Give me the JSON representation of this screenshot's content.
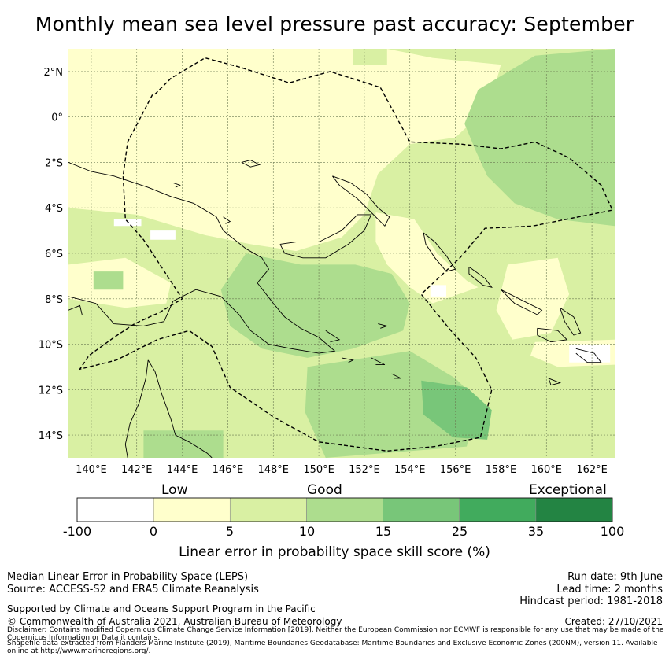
{
  "title": "Monthly mean sea level pressure past accuracy: September",
  "map": {
    "lon_range": [
      139,
      163
    ],
    "lat_range": [
      -15,
      3
    ],
    "lon_ticks": [
      "140°E",
      "142°E",
      "144°E",
      "146°E",
      "148°E",
      "150°E",
      "152°E",
      "154°E",
      "156°E",
      "158°E",
      "160°E",
      "162°E"
    ],
    "lat_ticks": [
      "2°N",
      "0°",
      "2°S",
      "4°S",
      "6°S",
      "8°S",
      "10°S",
      "12°S",
      "14°S"
    ],
    "lon_tick_values": [
      140,
      142,
      144,
      146,
      148,
      150,
      152,
      154,
      156,
      158,
      160,
      162
    ],
    "lat_tick_values": [
      2,
      0,
      -2,
      -4,
      -6,
      -8,
      -10,
      -12,
      -14
    ],
    "eez_boundary": [
      [
        142.8,
        1.0
      ],
      [
        143.5,
        1.7
      ],
      [
        145.0,
        2.6
      ],
      [
        146.5,
        2.2
      ],
      [
        148.7,
        1.5
      ],
      [
        150.5,
        2.0
      ],
      [
        152.7,
        1.3
      ],
      [
        154.0,
        -1.1
      ],
      [
        156.3,
        -1.2
      ],
      [
        158.0,
        -1.4
      ],
      [
        159.5,
        -1.1
      ],
      [
        161.0,
        -1.8
      ],
      [
        162.4,
        -3.0
      ],
      [
        162.9,
        -4.1
      ],
      [
        159.4,
        -4.8
      ],
      [
        157.3,
        -4.9
      ],
      [
        156.2,
        -6.2
      ],
      [
        154.5,
        -7.8
      ],
      [
        155.8,
        -9.4
      ],
      [
        156.9,
        -10.6
      ],
      [
        157.6,
        -12.0
      ],
      [
        157.1,
        -14.1
      ],
      [
        155.1,
        -14.5
      ],
      [
        153.0,
        -14.7
      ],
      [
        150.0,
        -14.3
      ],
      [
        148.0,
        -13.2
      ],
      [
        146.1,
        -11.9
      ],
      [
        145.3,
        -10.1
      ],
      [
        144.3,
        -9.4
      ],
      [
        142.9,
        -9.8
      ],
      [
        141.1,
        -10.7
      ],
      [
        139.5,
        -11.1
      ],
      [
        139.9,
        -10.5
      ],
      [
        141.0,
        -9.7
      ],
      [
        141.9,
        -9.1
      ],
      [
        143.0,
        -8.6
      ],
      [
        144.0,
        -8.0
      ],
      [
        142.3,
        -5.4
      ],
      [
        141.5,
        -4.5
      ],
      [
        141.4,
        -2.6
      ],
      [
        141.6,
        -1.1
      ],
      [
        142.7,
        1.0
      ]
    ]
  },
  "colorbar": {
    "categories": [
      "Low",
      "Good",
      "Exceptional"
    ],
    "ticks": [
      "-100",
      "0",
      "5",
      "10",
      "15",
      "25",
      "35",
      "100"
    ],
    "colors": [
      "#ffffff",
      "#ffffcc",
      "#d9f0a3",
      "#addd8e",
      "#78c679",
      "#41ab5d",
      "#238443"
    ],
    "label": "Linear error in probability space skill score (%)"
  },
  "footer": {
    "left_line1": "Median Linear Error in Probability Space (LEPS)",
    "left_line2": "Source: ACCESS-S2 and ERA5 Climate Reanalysis",
    "support": "Supported by Climate and Oceans Support Program in the Pacific",
    "copyright": "© Commonwealth of Australia 2021, Australian Bureau of Meteorology",
    "run_date": "Run date: 9th June",
    "lead_time": "Lead time: 2 months",
    "hindcast": "Hindcast period: 1981-2018",
    "created": "Created: 27/10/2021",
    "disclaimer": "Disclaimer: Contains modified Copernicus Climate Change Service Information [2019]. Neither the European Commission nor ECMWF is responsible for any use that may be made of the Copernicus Information or Data it contains.",
    "shapefile": "Shapefile data extracted from Flanders Marine Institute (2019), Maritime Boundaries Geodatabase: Maritime Boundaries and Exclusive Economic Zones (200NM), version 11. Available online at http://www.marineregions.org/."
  }
}
